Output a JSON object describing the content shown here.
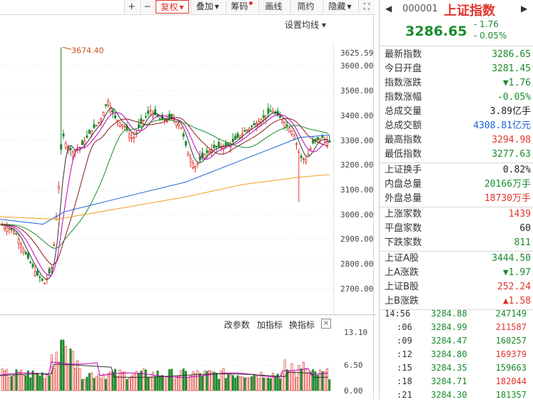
{
  "toolbar": {
    "plus": "+",
    "minus": "−",
    "items": [
      {
        "label": "复权",
        "active": true,
        "caret": true
      },
      {
        "label": "叠加",
        "caret": true
      },
      {
        "label": "筹码",
        "dot": true
      },
      {
        "label": "画线"
      },
      {
        "label": "简约"
      },
      {
        "label": "隐藏",
        "caret": true
      }
    ],
    "expand": "⛶"
  },
  "ma_setting_label": "设置均线 ▾",
  "price_axis": [
    "3625.59",
    "3600.00",
    "3500.00",
    "3400.00",
    "3300.00",
    "3200.00",
    "3100.00",
    "3000.00",
    "2900.00",
    "2800.00",
    "2700.00"
  ],
  "high_marker": "3674.40",
  "sub_toolbar": {
    "params": "改参数",
    "add": "加指标",
    "switch": "换指标",
    "close": "×"
  },
  "volume_axis": [
    "13.10",
    "6.50",
    "0.00"
  ],
  "colors": {
    "up": "#e0352b",
    "down": "#1a8b2c",
    "ma5": "#333333",
    "ma10": "#d4a017",
    "ma20": "#c000c0",
    "ma30": "#1a8b2c",
    "ma60": "#1c5fd6",
    "ma120": "#f0a020"
  },
  "header": {
    "code": "000001",
    "name": "上证指数",
    "price": "3286.65",
    "change": "- 1.76",
    "pct": "- 0.05%"
  },
  "stats1": [
    {
      "label": "最新指数",
      "value": "3286.65",
      "color": "green"
    },
    {
      "label": "今日开盘",
      "value": "3281.45",
      "color": "green"
    },
    {
      "label": "指数涨跌",
      "value": "▼1.76",
      "color": "green"
    },
    {
      "label": "指数涨幅",
      "value": "-0.05%",
      "color": "green"
    },
    {
      "label": "总成交量",
      "value": "3.89亿手",
      "color": "black"
    },
    {
      "label": "总成交额",
      "value": "4308.81亿元",
      "color": "blue"
    },
    {
      "label": "最高指数",
      "value": "3294.98",
      "color": "red"
    },
    {
      "label": "最低指数",
      "value": "3277.63",
      "color": "green"
    }
  ],
  "stats2": [
    {
      "label": "上证换手",
      "value": "0.82%",
      "color": "black"
    },
    {
      "label": "内盘总量",
      "value": "20166万手",
      "color": "green"
    },
    {
      "label": "外盘总量",
      "value": "18730万手",
      "color": "red"
    }
  ],
  "stats3": [
    {
      "label": "上涨家数",
      "value": "1439",
      "color": "red"
    },
    {
      "label": "平盘家数",
      "value": "60",
      "color": "black"
    },
    {
      "label": "下跌家数",
      "value": "811",
      "color": "green"
    }
  ],
  "stats4": [
    {
      "label": "上证A股",
      "value": "3444.50",
      "color": "green"
    },
    {
      "label": "上A涨跌",
      "value": "▼1.97",
      "color": "green"
    },
    {
      "label": "上证B股",
      "value": "252.24",
      "color": "red"
    },
    {
      "label": "上B涨跌",
      "value": "▲1.58",
      "color": "red"
    }
  ],
  "ticks": [
    {
      "time": "14:56",
      "price": "3284.88",
      "vol": "247149",
      "volColor": "green"
    },
    {
      "time": ":06",
      "price": "3284.99",
      "vol": "211587",
      "volColor": "red"
    },
    {
      "time": ":09",
      "price": "3284.47",
      "vol": "160257",
      "volColor": "green"
    },
    {
      "time": ":12",
      "price": "3284.80",
      "vol": "169379",
      "volColor": "red"
    },
    {
      "time": ":15",
      "price": "3284.35",
      "vol": "159663",
      "volColor": "green"
    },
    {
      "time": ":18",
      "price": "3284.71",
      "vol": "182044",
      "volColor": "red"
    },
    {
      "time": ":21",
      "price": "3284.30",
      "vol": "181357",
      "volColor": "green"
    }
  ]
}
